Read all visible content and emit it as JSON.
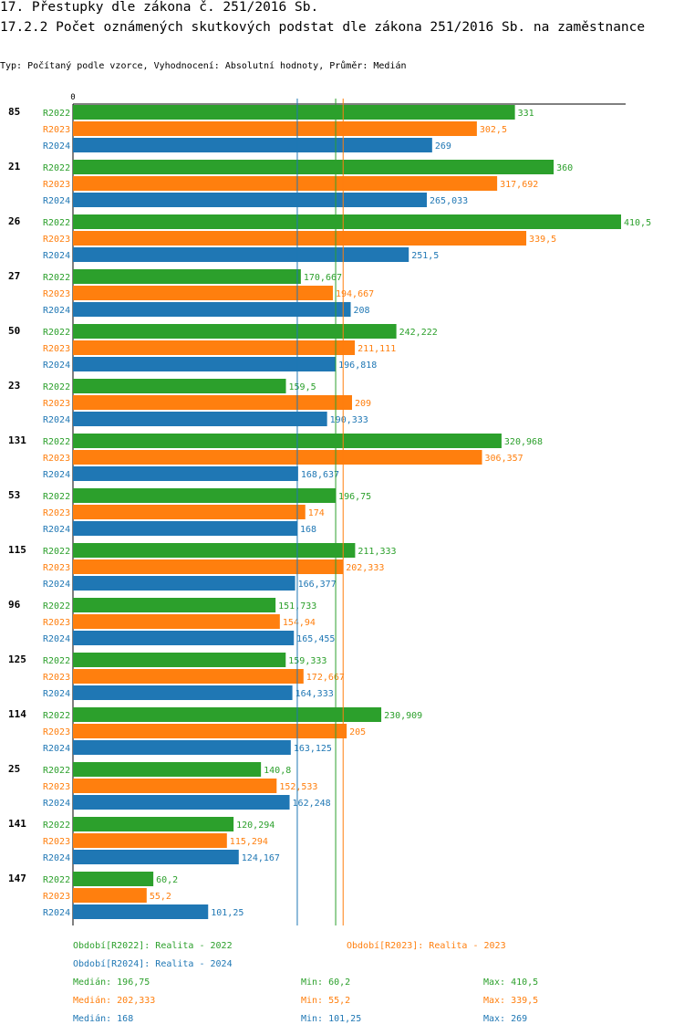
{
  "header": {
    "title": "17. Přestupky dle zákona č. 251/2016 Sb.",
    "subtitle": "17.2.2 Počet oznámených skutkových podstat dle zákona 251/2016 Sb. na zaměstnance",
    "type_line": "Typ: Počítaný podle vzorce, Vyhodnocení: Absolutní hodnoty, Průměr: Medián"
  },
  "chart_data": {
    "type": "bar",
    "orientation": "horizontal",
    "zero_label": "0",
    "xlim": [
      0,
      410.5
    ],
    "categories": [
      "85",
      "21",
      "26",
      "27",
      "50",
      "23",
      "131",
      "53",
      "115",
      "96",
      "125",
      "114",
      "25",
      "141",
      "147"
    ],
    "series": [
      {
        "name": "R2022",
        "color": "#2ca02c",
        "values": [
          331,
          360,
          410.5,
          170.667,
          242.222,
          159.5,
          320.968,
          196.75,
          211.333,
          151.733,
          159.333,
          230.909,
          140.8,
          120.294,
          60.2
        ],
        "labels": [
          "331",
          "360",
          "410,5",
          "170,667",
          "242,222",
          "159,5",
          "320,968",
          "196,75",
          "211,333",
          "151,733",
          "159,333",
          "230,909",
          "140,8",
          "120,294",
          "60,2"
        ]
      },
      {
        "name": "R2023",
        "color": "#ff7f0e",
        "values": [
          302.5,
          317.692,
          339.5,
          194.667,
          211.111,
          209,
          306.357,
          174,
          202.333,
          154.94,
          172.667,
          205,
          152.533,
          115.294,
          55.2
        ],
        "labels": [
          "302,5",
          "317,692",
          "339,5",
          "194,667",
          "211,111",
          "209",
          "306,357",
          "174",
          "202,333",
          "154,94",
          "172,667",
          "205",
          "152,533",
          "115,294",
          "55,2"
        ]
      },
      {
        "name": "R2024",
        "color": "#1f77b4",
        "values": [
          269,
          265.033,
          251.5,
          208,
          196.818,
          190.333,
          168.637,
          168,
          166.377,
          165.455,
          164.333,
          163.125,
          162.248,
          124.167,
          101.25
        ],
        "labels": [
          "269",
          "265,033",
          "251,5",
          "208",
          "196,818",
          "190,333",
          "168,637",
          "168",
          "166,377",
          "165,455",
          "164,333",
          "163,125",
          "162,248",
          "124,167",
          "101,25"
        ]
      }
    ],
    "median_lines": [
      {
        "series": "R2022",
        "value": 196.75,
        "color": "#2ca02c"
      },
      {
        "series": "R2023",
        "value": 202.333,
        "color": "#ff7f0e"
      },
      {
        "series": "R2024",
        "value": 168,
        "color": "#1f77b4"
      }
    ]
  },
  "legend": {
    "r2022": "Období[R2022]: Realita - 2022",
    "r2023": "Období[R2023]: Realita - 2023",
    "r2024": "Období[R2024]: Realita - 2024"
  },
  "stats": {
    "r2022": {
      "median": "Medián: 196,75",
      "min": "Min: 60,2",
      "max": "Max: 410,5"
    },
    "r2023": {
      "median": "Medián: 202,333",
      "min": "Min: 55,2",
      "max": "Max: 339,5"
    },
    "r2024": {
      "median": "Medián: 168",
      "min": "Min: 101,25",
      "max": "Max: 269"
    }
  }
}
